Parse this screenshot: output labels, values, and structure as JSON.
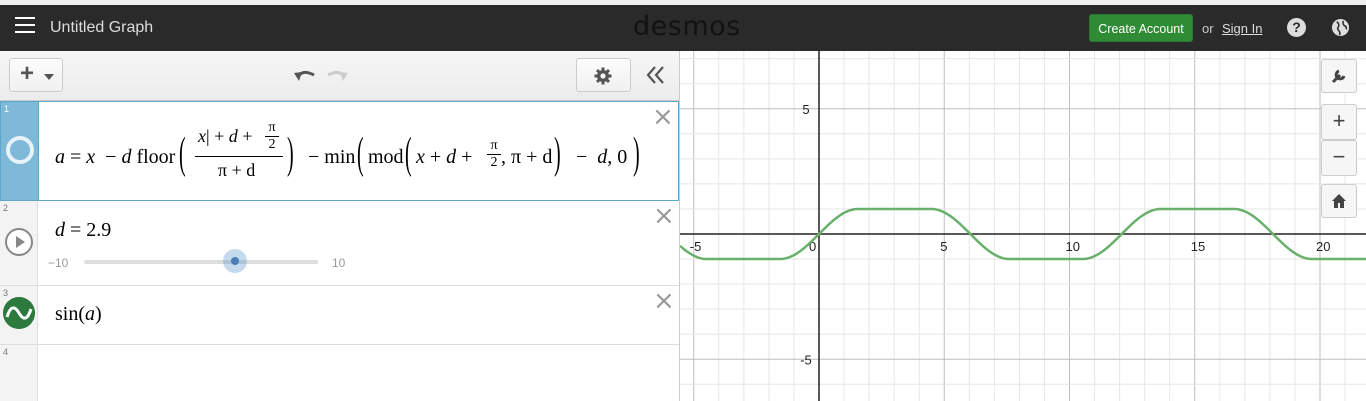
{
  "header": {
    "title": "Untitled Graph",
    "logo": "desmos",
    "create_account": "Create Account",
    "or_text": "or",
    "sign_in": "Sign In",
    "help": "?"
  },
  "toolbar": {
    "add_label": "+",
    "icons": [
      "undo-icon",
      "redo-icon",
      "gear-icon",
      "double-chevron-left-icon"
    ]
  },
  "expressions": [
    {
      "num": "1",
      "lhs": "a",
      "t_x": "x",
      "t_minus": "−",
      "t_d1": "d",
      "t_floor": "floor",
      "t_num_x": "x",
      "t_num_bar": "|",
      "t_plus1": "+",
      "t_num_d": "d",
      "t_plus2": "+",
      "t_pi1": "π",
      "t_two1": "2",
      "t_den": "π + d",
      "t_min": "min",
      "t_mod": "mod",
      "t_mod_x": "x",
      "t_mod_plus1": "+",
      "t_mod_d": "d",
      "t_mod_plus2": "+",
      "t_pi2": "π",
      "t_two2": "2",
      "t_comma_pi": ", π + d",
      "t_minus2": "−",
      "t_d_end": "d",
      "t_zero": ", 0"
    },
    {
      "num": "2",
      "lhs": "d",
      "rhs": "= 2.9",
      "slider_min": "−10",
      "slider_max": "10",
      "slider_value": 2.9
    },
    {
      "num": "3",
      "fn": "sin",
      "arg": "a"
    },
    {
      "num": "4"
    }
  ],
  "graph": {
    "x_ticks": [
      "-5",
      "0",
      "5",
      "10",
      "15",
      "20"
    ],
    "y_ticks": [
      "5",
      "-5"
    ],
    "curve_color": "#6ab06d",
    "tool_icons": [
      "wrench-icon",
      "zoom-in-icon",
      "zoom-out-icon",
      "home-icon"
    ]
  },
  "colors": {
    "header_bg": "#2a2a2a",
    "create_btn": "#2f8c34",
    "active_expr": "#7fb9d8"
  }
}
